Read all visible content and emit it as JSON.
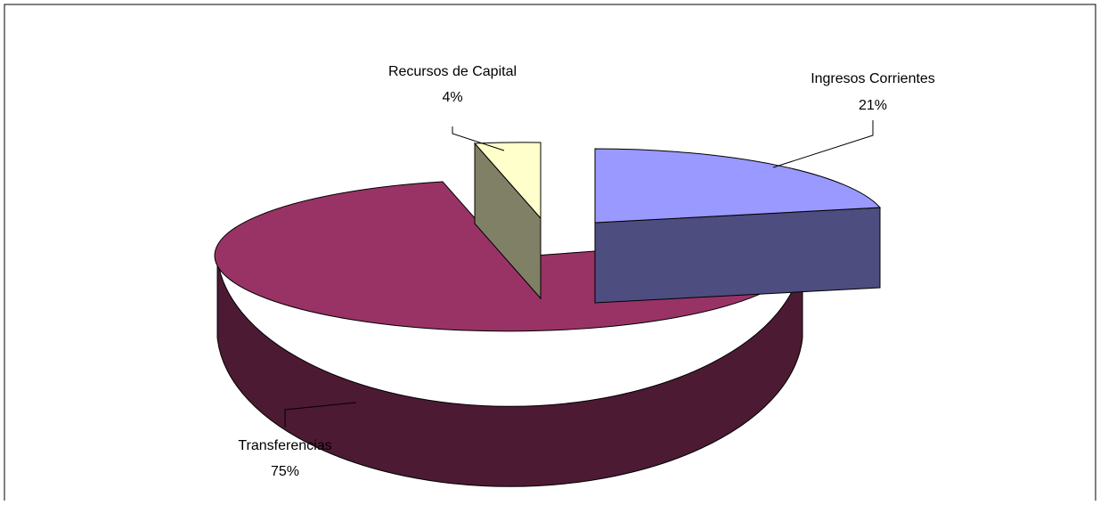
{
  "chart_data": {
    "type": "pie",
    "style": "3d-exploded",
    "slices": [
      {
        "label": "Ingresos Corrientes",
        "percent": 21,
        "value_label": "21%",
        "color": "#9999ff",
        "side_color": "#4d4d80"
      },
      {
        "label": "Transferencias",
        "percent": 75,
        "value_label": "75%",
        "color": "#993366",
        "side_color": "#4d1a33"
      },
      {
        "label": "Recursos de Capital",
        "percent": 4,
        "value_label": "4%",
        "color": "#ffffcc",
        "side_color": "#808066"
      }
    ],
    "legend": "none",
    "data_labels": "category-and-percent"
  }
}
